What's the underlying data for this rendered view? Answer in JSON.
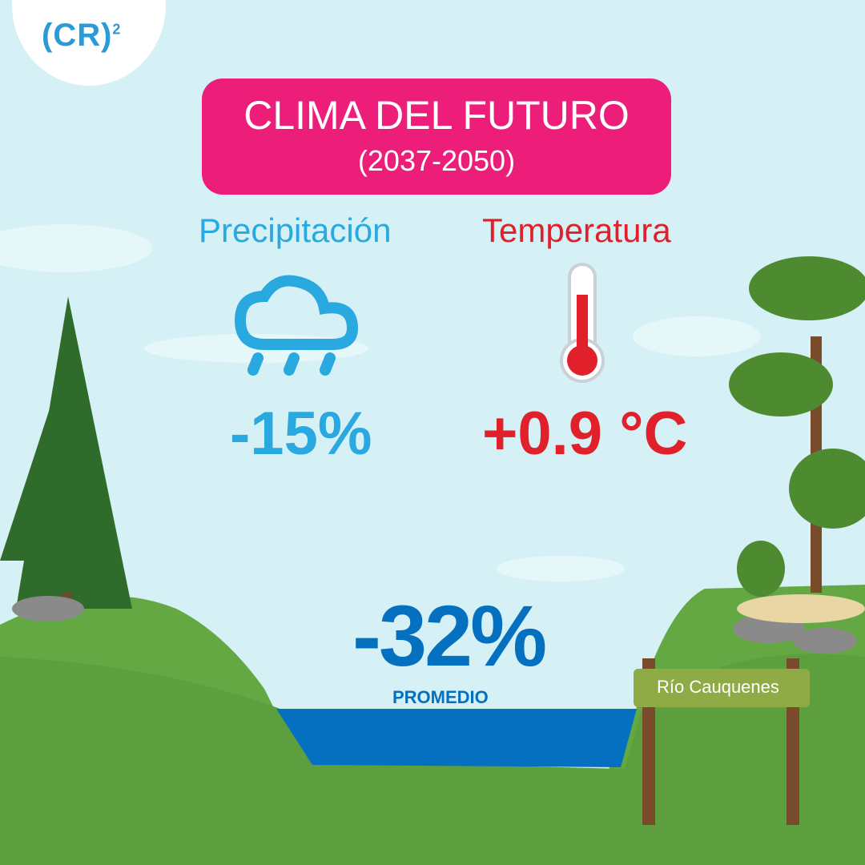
{
  "logo": {
    "text": "(CR)",
    "superscript": "2"
  },
  "header": {
    "title": "CLIMA DEL FUTURO",
    "subtitle": "(2037-2050)"
  },
  "precipitation": {
    "label": "Precipitación",
    "value": "-15%",
    "icon": "rain-cloud-icon",
    "color": "#2aa8e0"
  },
  "temperature": {
    "label": "Temperatura",
    "value": "+0.9 °C",
    "icon": "thermometer-icon",
    "color": "#e0202a"
  },
  "streamflow": {
    "value": "-32%",
    "label": "PROMEDIO",
    "color": "#0670c0"
  },
  "sign": {
    "text": "Río Cauquenes"
  },
  "colors": {
    "sky": "#d5f1f5",
    "title_bg": "#ec1e79",
    "grass": "#5d9e3f",
    "water": "#0670c0"
  }
}
